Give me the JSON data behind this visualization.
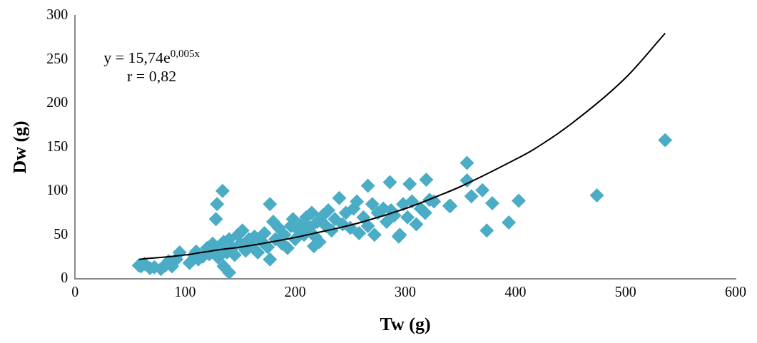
{
  "chart_data": {
    "type": "scatter",
    "xlabel": "Tw (g)",
    "ylabel": "Dw (g)",
    "xlim": [
      0,
      600
    ],
    "xticks": [
      0,
      100,
      200,
      300,
      400,
      500,
      600
    ],
    "ylim": [
      0,
      300
    ],
    "yticks": [
      0,
      50,
      100,
      150,
      200,
      250,
      300
    ],
    "grid": false,
    "legend": false,
    "marker": "diamond",
    "annotations": [
      "y = 15,74e$^{0,005x}$",
      "r = 0,82"
    ],
    "series": [
      {
        "color": "#4bacc6",
        "x": [
          58,
          60,
          63,
          68,
          72,
          78,
          82,
          85,
          88,
          92,
          95,
          104,
          108,
          110,
          112,
          116,
          120,
          122,
          125,
          128,
          128,
          129,
          130,
          132,
          134,
          135,
          135,
          138,
          140,
          140,
          143,
          145,
          148,
          150,
          152,
          155,
          158,
          160,
          163,
          166,
          170,
          172,
          175,
          177,
          177,
          180,
          182,
          185,
          188,
          190,
          193,
          196,
          198,
          200,
          203,
          206,
          208,
          210,
          213,
          215,
          217,
          218,
          220,
          222,
          225,
          228,
          230,
          233,
          236,
          240,
          243,
          246,
          250,
          253,
          256,
          258,
          262,
          266,
          266,
          270,
          272,
          275,
          280,
          283,
          286,
          287,
          290,
          294,
          295,
          298,
          302,
          304,
          306,
          310,
          314,
          318,
          319,
          322,
          326,
          340,
          341,
          356,
          356,
          360,
          370,
          374,
          379,
          394,
          403,
          474,
          536
        ],
        "values": [
          15,
          14,
          17,
          12,
          13,
          11,
          15,
          20,
          14,
          22,
          30,
          18,
          27,
          31,
          22,
          25,
          35,
          28,
          40,
          32,
          68,
          85,
          24,
          38,
          100,
          42,
          14,
          30,
          45,
          7,
          35,
          27,
          50,
          40,
          55,
          32,
          45,
          38,
          48,
          30,
          42,
          52,
          36,
          22,
          85,
          65,
          45,
          58,
          40,
          50,
          35,
          60,
          68,
          45,
          55,
          62,
          50,
          70,
          58,
          75,
          37,
          48,
          65,
          42,
          72,
          60,
          78,
          55,
          68,
          92,
          62,
          75,
          58,
          80,
          88,
          52,
          70,
          60,
          106,
          85,
          50,
          75,
          80,
          65,
          110,
          78,
          72,
          48,
          50,
          85,
          70,
          108,
          88,
          62,
          80,
          75,
          113,
          90,
          88,
          83,
          83,
          132,
          112,
          94,
          101,
          55,
          86,
          64,
          89,
          95,
          158
        ]
      },
      {
        "type": "line",
        "color": "#000000",
        "marker": "none",
        "x": [
          58,
          100,
          131,
          150,
          200,
          229,
          250,
          300,
          331,
          350,
          403,
          416,
          450,
          500,
          536
        ],
        "values": [
          22,
          27,
          33,
          36,
          47,
          55,
          61,
          80,
          95,
          105,
          138,
          147,
          176,
          229,
          280
        ]
      }
    ]
  }
}
